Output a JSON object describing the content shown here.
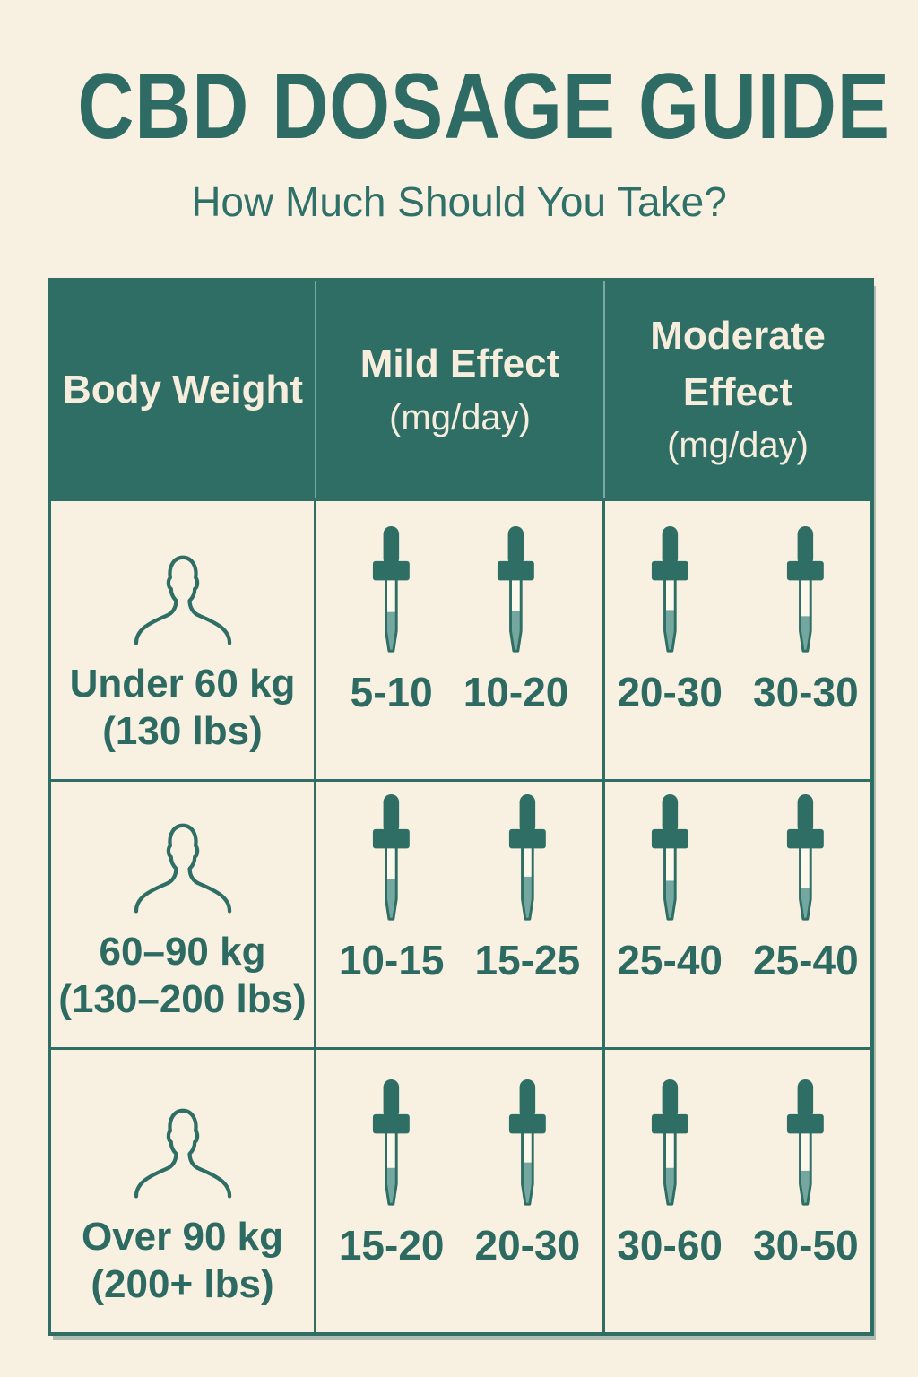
{
  "colors": {
    "background": "#f8f0e1",
    "teal_dark": "#2e6e65",
    "text_teal": "#2d6a62",
    "header_text": "#f6eddd",
    "dropper_liquid": "#74a79f"
  },
  "title": "CBD DOSAGE GUIDE",
  "subtitle": "How Much Should You Take?",
  "table": {
    "headers": [
      {
        "title": "Body Weight",
        "unit": ""
      },
      {
        "title": "Mild Effect",
        "unit": "(mg/day)"
      },
      {
        "title": "Moderate Effect",
        "unit": "(mg/day)"
      }
    ],
    "rows": [
      {
        "weight": "Under 60 kg",
        "weight_alt": "(130 lbs)",
        "mild": [
          {
            "range": "5-10",
            "fill": 0.54
          },
          {
            "range": "10-20",
            "fill": 0.55
          }
        ],
        "moderate": [
          {
            "range": "20-30",
            "fill": 0.57
          },
          {
            "range": "30-30",
            "fill": 0.48
          }
        ]
      },
      {
        "weight": "60–90 kg",
        "weight_alt": "(130–200 lbs)",
        "mild": [
          {
            "range": "10-15",
            "fill": 0.55
          },
          {
            "range": "15-25",
            "fill": 0.59
          }
        ],
        "moderate": [
          {
            "range": "25-40",
            "fill": 0.53
          },
          {
            "range": "25-40",
            "fill": 0.42
          }
        ]
      },
      {
        "weight": "Over 90 kg",
        "weight_alt": "(200+ lbs)",
        "mild": [
          {
            "range": "15-20",
            "fill": 0.5
          },
          {
            "range": "20-30",
            "fill": 0.58
          }
        ],
        "moderate": [
          {
            "range": "30-60",
            "fill": 0.5
          },
          {
            "range": "30-50",
            "fill": 0.46
          }
        ]
      }
    ]
  }
}
